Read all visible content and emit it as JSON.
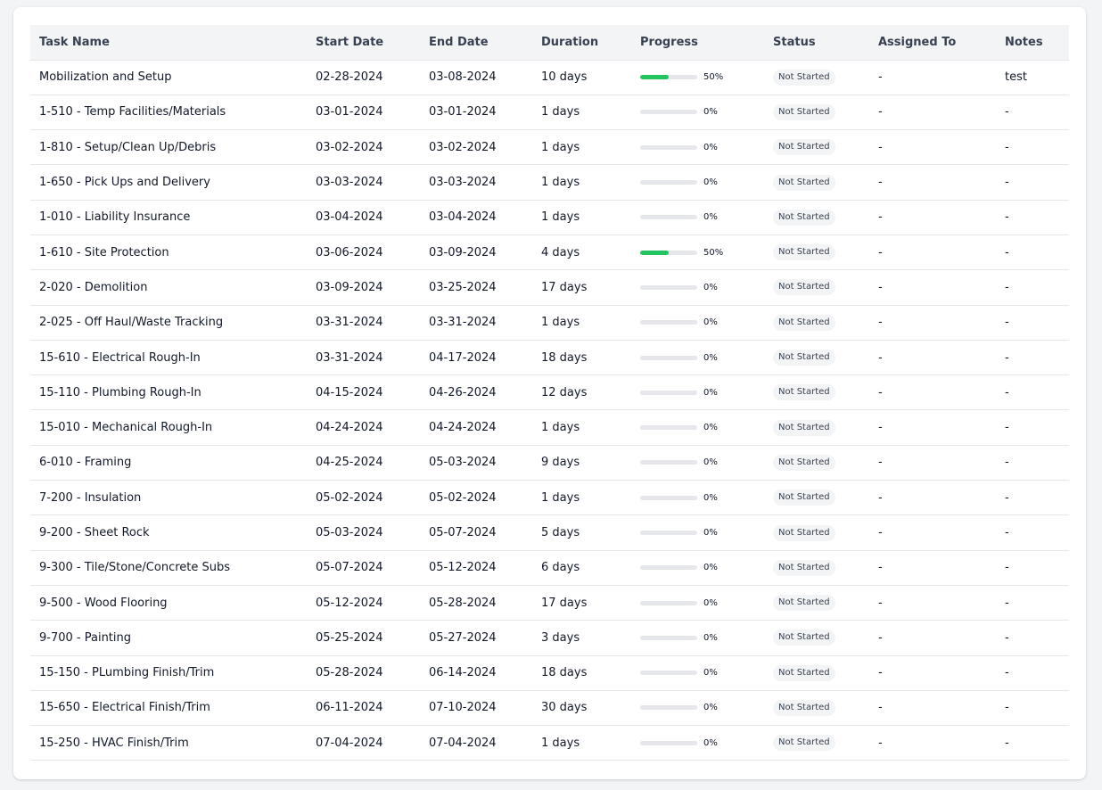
{
  "table": {
    "headers": [
      "Task Name",
      "Start Date",
      "End Date",
      "Duration",
      "Progress",
      "Status",
      "Assigned To",
      "Notes"
    ],
    "rows": [
      {
        "task": "Mobilization and Setup",
        "start": "02-28-2024",
        "end": "03-08-2024",
        "duration": "10 days",
        "progress": 50,
        "progress_label": "50%",
        "status": "Not Started",
        "assigned": "-",
        "notes": "test"
      },
      {
        "task": "1-510 - Temp Facilities/Materials",
        "start": "03-01-2024",
        "end": "03-01-2024",
        "duration": "1 days",
        "progress": 0,
        "progress_label": "0%",
        "status": "Not Started",
        "assigned": "-",
        "notes": "-"
      },
      {
        "task": "1-810 - Setup/Clean Up/Debris",
        "start": "03-02-2024",
        "end": "03-02-2024",
        "duration": "1 days",
        "progress": 0,
        "progress_label": "0%",
        "status": "Not Started",
        "assigned": "-",
        "notes": "-"
      },
      {
        "task": "1-650 - Pick Ups and Delivery",
        "start": "03-03-2024",
        "end": "03-03-2024",
        "duration": "1 days",
        "progress": 0,
        "progress_label": "0%",
        "status": "Not Started",
        "assigned": "-",
        "notes": "-"
      },
      {
        "task": "1-010 - Liability Insurance",
        "start": "03-04-2024",
        "end": "03-04-2024",
        "duration": "1 days",
        "progress": 0,
        "progress_label": "0%",
        "status": "Not Started",
        "assigned": "-",
        "notes": "-"
      },
      {
        "task": "1-610 - Site Protection",
        "start": "03-06-2024",
        "end": "03-09-2024",
        "duration": "4 days",
        "progress": 50,
        "progress_label": "50%",
        "status": "Not Started",
        "assigned": "-",
        "notes": "-"
      },
      {
        "task": "2-020 - Demolition",
        "start": "03-09-2024",
        "end": "03-25-2024",
        "duration": "17 days",
        "progress": 0,
        "progress_label": "0%",
        "status": "Not Started",
        "assigned": "-",
        "notes": "-"
      },
      {
        "task": "2-025 - Off Haul/Waste Tracking",
        "start": "03-31-2024",
        "end": "03-31-2024",
        "duration": "1 days",
        "progress": 0,
        "progress_label": "0%",
        "status": "Not Started",
        "assigned": "-",
        "notes": "-"
      },
      {
        "task": "15-610 - Electrical Rough-In",
        "start": "03-31-2024",
        "end": "04-17-2024",
        "duration": "18 days",
        "progress": 0,
        "progress_label": "0%",
        "status": "Not Started",
        "assigned": "-",
        "notes": "-"
      },
      {
        "task": "15-110 - Plumbing Rough-In",
        "start": "04-15-2024",
        "end": "04-26-2024",
        "duration": "12 days",
        "progress": 0,
        "progress_label": "0%",
        "status": "Not Started",
        "assigned": "-",
        "notes": "-"
      },
      {
        "task": "15-010 - Mechanical Rough-In",
        "start": "04-24-2024",
        "end": "04-24-2024",
        "duration": "1 days",
        "progress": 0,
        "progress_label": "0%",
        "status": "Not Started",
        "assigned": "-",
        "notes": "-"
      },
      {
        "task": "6-010 - Framing",
        "start": "04-25-2024",
        "end": "05-03-2024",
        "duration": "9 days",
        "progress": 0,
        "progress_label": "0%",
        "status": "Not Started",
        "assigned": "-",
        "notes": "-"
      },
      {
        "task": "7-200 - Insulation",
        "start": "05-02-2024",
        "end": "05-02-2024",
        "duration": "1 days",
        "progress": 0,
        "progress_label": "0%",
        "status": "Not Started",
        "assigned": "-",
        "notes": "-"
      },
      {
        "task": "9-200 - Sheet Rock",
        "start": "05-03-2024",
        "end": "05-07-2024",
        "duration": "5 days",
        "progress": 0,
        "progress_label": "0%",
        "status": "Not Started",
        "assigned": "-",
        "notes": "-"
      },
      {
        "task": "9-300 - Tile/Stone/Concrete Subs",
        "start": "05-07-2024",
        "end": "05-12-2024",
        "duration": "6 days",
        "progress": 0,
        "progress_label": "0%",
        "status": "Not Started",
        "assigned": "-",
        "notes": "-"
      },
      {
        "task": "9-500 - Wood Flooring",
        "start": "05-12-2024",
        "end": "05-28-2024",
        "duration": "17 days",
        "progress": 0,
        "progress_label": "0%",
        "status": "Not Started",
        "assigned": "-",
        "notes": "-"
      },
      {
        "task": "9-700 - Painting",
        "start": "05-25-2024",
        "end": "05-27-2024",
        "duration": "3 days",
        "progress": 0,
        "progress_label": "0%",
        "status": "Not Started",
        "assigned": "-",
        "notes": "-"
      },
      {
        "task": "15-150 - PLumbing Finish/Trim",
        "start": "05-28-2024",
        "end": "06-14-2024",
        "duration": "18 days",
        "progress": 0,
        "progress_label": "0%",
        "status": "Not Started",
        "assigned": "-",
        "notes": "-"
      },
      {
        "task": "15-650 - Electrical Finish/Trim",
        "start": "06-11-2024",
        "end": "07-10-2024",
        "duration": "30 days",
        "progress": 0,
        "progress_label": "0%",
        "status": "Not Started",
        "assigned": "-",
        "notes": "-"
      },
      {
        "task": "15-250 - HVAC Finish/Trim",
        "start": "07-04-2024",
        "end": "07-04-2024",
        "duration": "1 days",
        "progress": 0,
        "progress_label": "0%",
        "status": "Not Started",
        "assigned": "-",
        "notes": "-"
      }
    ]
  }
}
